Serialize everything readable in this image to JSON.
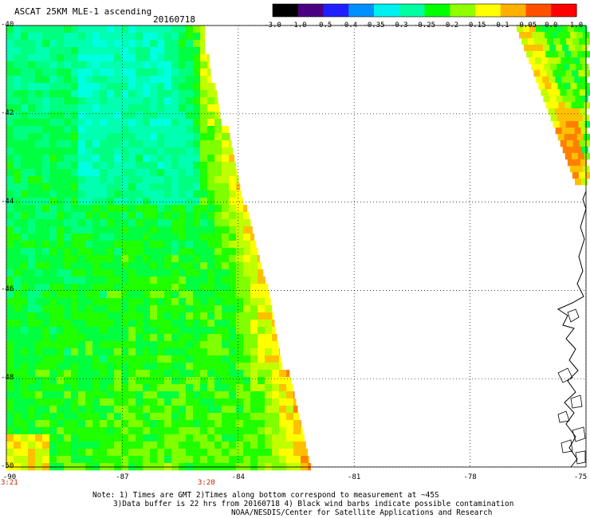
{
  "header": {
    "title": "ASCAT 25KM MLE-1 ascending",
    "date": "20160718"
  },
  "colorbar": {
    "labels": [
      "-3.0",
      "-1.0",
      "-0.5",
      "-0.4",
      "-0.35",
      "-0.3",
      "-0.25",
      "-0.2",
      "-0.15",
      "-0.1",
      "-0.05",
      "0.0",
      "1.0"
    ],
    "colors": [
      "#000000",
      "#4b0082",
      "#2020ff",
      "#0090ff",
      "#00f0f0",
      "#00ffa0",
      "#00ff00",
      "#90ff00",
      "#ffff00",
      "#ffb000",
      "#ff5000",
      "#ff0000"
    ]
  },
  "axes": {
    "lat_labels": [
      "-40",
      "-42",
      "-44",
      "-46",
      "-48",
      "-50"
    ],
    "lon_labels": [
      "-90",
      "-87",
      "-84",
      "-81",
      "-78",
      "-75"
    ],
    "lat_range": [
      -50,
      -40
    ],
    "lon_range": [
      -90,
      -75
    ]
  },
  "times": {
    "left": "3:21",
    "mid": "3:20"
  },
  "notes": {
    "line1": "Note: 1) Times are GMT 2)Times along bottom correspond to measurement at ~45S",
    "line2": "3)Data buffer is 22 hrs from 20160718 4) Black wind barbs indicate possible contamination",
    "line3": "NOAA/NESDIS/Center for Satellite Applications and Research"
  }
}
